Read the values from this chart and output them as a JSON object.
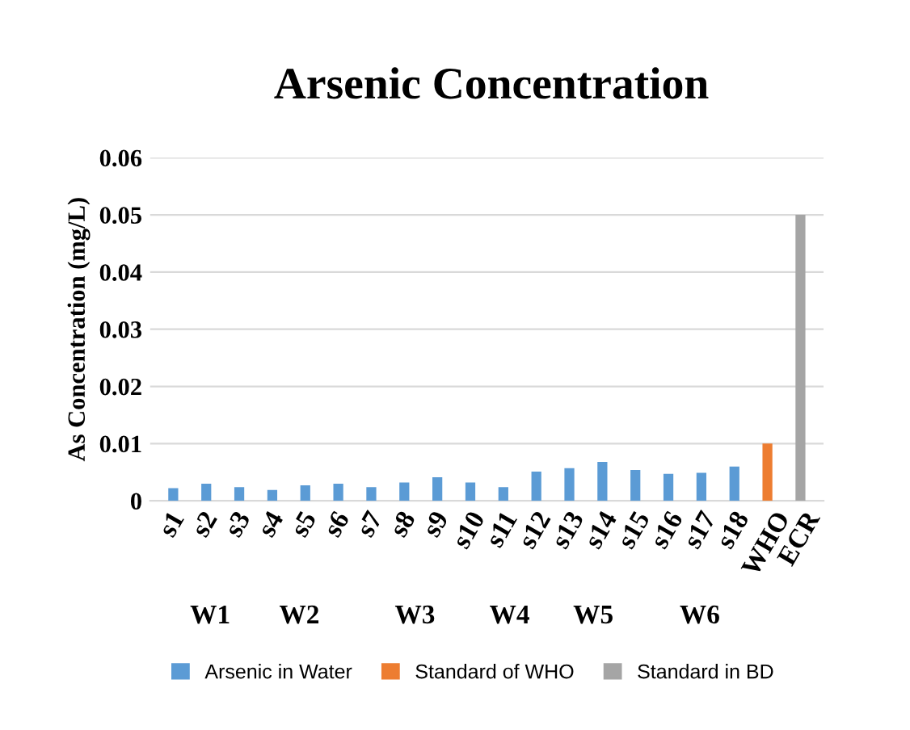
{
  "chart_data": {
    "type": "bar",
    "title": "Arsenic Concentration",
    "ylabel": "As Concentration (mg/L)",
    "categories": [
      "s1",
      "s2",
      "s3",
      "s4",
      "s5",
      "s6",
      "s7",
      "s8",
      "s9",
      "s10",
      "s11",
      "s12",
      "s13",
      "s14",
      "s15",
      "s16",
      "s17",
      "s18",
      "WHO",
      "ECR"
    ],
    "series": [
      {
        "name": "Arsenic in Water",
        "color": "#5b9bd5",
        "values": [
          0.0022,
          0.003,
          0.0024,
          0.0019,
          0.0027,
          0.003,
          0.0024,
          0.0032,
          0.0041,
          0.0032,
          0.0024,
          0.0051,
          0.0057,
          0.0068,
          0.0054,
          0.0047,
          0.0049,
          0.006,
          null,
          null
        ]
      },
      {
        "name": "Standard of WHO",
        "color": "#ed7d31",
        "values": [
          null,
          null,
          null,
          null,
          null,
          null,
          null,
          null,
          null,
          null,
          null,
          null,
          null,
          null,
          null,
          null,
          null,
          null,
          0.01,
          null
        ]
      },
      {
        "name": "Standard in BD",
        "color": "#a5a5a5",
        "values": [
          null,
          null,
          null,
          null,
          null,
          null,
          null,
          null,
          null,
          null,
          null,
          null,
          null,
          null,
          null,
          null,
          null,
          null,
          null,
          0.05
        ]
      }
    ],
    "ylim": [
      0,
      0.06
    ],
    "yticks": [
      {
        "value": 0,
        "label": "0"
      },
      0.01,
      0.02,
      0.03,
      0.04,
      0.05,
      0.06
    ],
    "grid": "y",
    "legend": "bottom",
    "annotations": [
      "W1",
      "W2",
      "W3",
      "W4",
      "W5",
      "W6"
    ]
  }
}
